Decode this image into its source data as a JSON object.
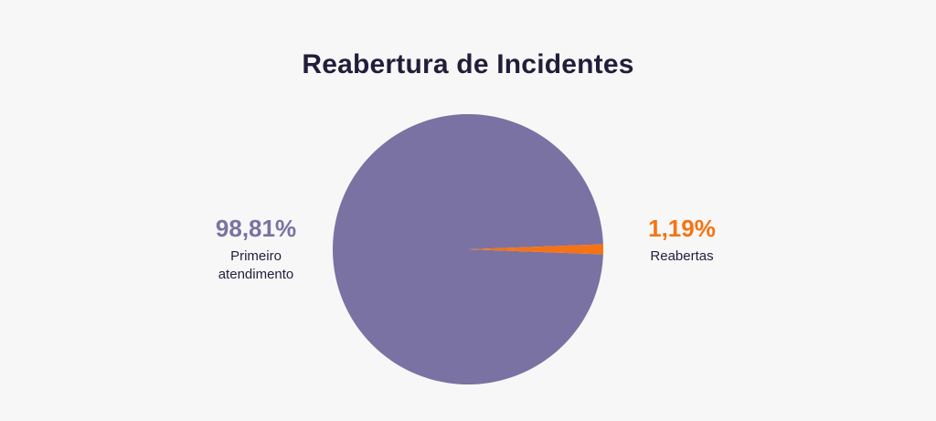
{
  "chart_data": {
    "type": "pie",
    "title": "Reabertura de Incidentes",
    "slices": [
      {
        "label": "Primeiro atendimento",
        "value": 98.81,
        "display": "98,81%",
        "color": "#7a72a2"
      },
      {
        "label": "Reabertas",
        "value": 1.19,
        "display": "1,19%",
        "color": "#f57314"
      }
    ]
  },
  "colors": {
    "background": "#f7f7f7",
    "title": "#231d3b",
    "primary_slice": "#7a72a2",
    "accent_slice": "#f57314"
  }
}
